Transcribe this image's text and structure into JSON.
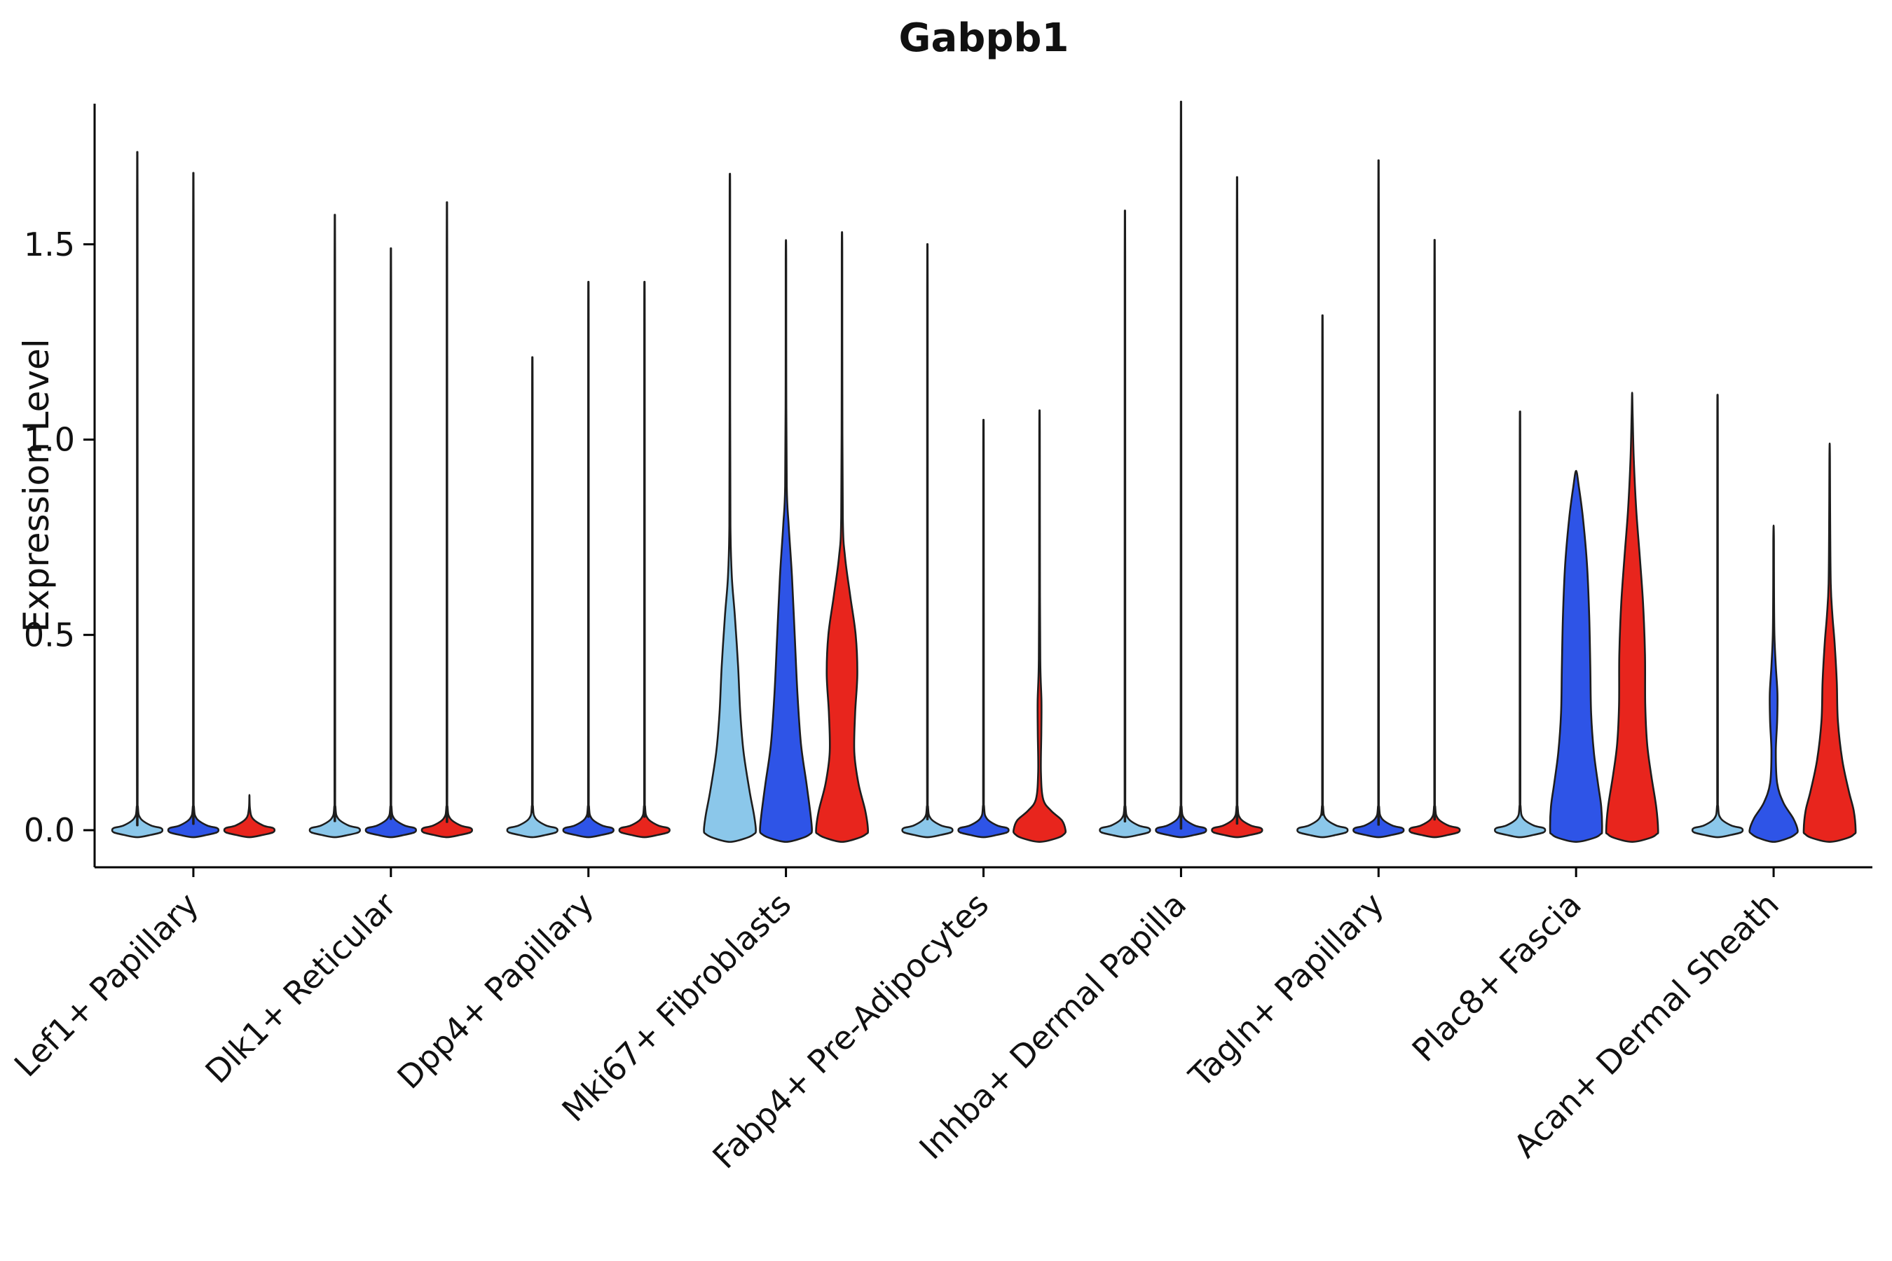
{
  "chart_data": {
    "type": "violin",
    "title": "Gabpb1",
    "ylabel": "Expression Level",
    "xlabel": "",
    "ylim": [
      -0.095,
      1.86
    ],
    "yticks": [
      0.0,
      0.5,
      1.0,
      1.5
    ],
    "ytick_labels": [
      "0.0",
      "0.5",
      "1.0",
      "1.5"
    ],
    "grid": false,
    "legend_position": "none",
    "edge_color": "#1d1d1d",
    "axis_color": "#000000",
    "background_color": "#ffffff",
    "groups": [
      {
        "name": "group-1",
        "color": "#8BC7EA"
      },
      {
        "name": "group-2",
        "color": "#2E54E7"
      },
      {
        "name": "group-3",
        "color": "#E8251D"
      }
    ],
    "categories": [
      "Lef1+ Papillary",
      "Dlk1+ Reticular",
      "Dpp4+ Papillary",
      "Mki67+ Fibroblasts",
      "Fabp4+ Pre-Adipocytes",
      "Inhba+ Dermal Papilla",
      "Tagln+ Papillary",
      "Plac8+ Fascia",
      "Acan+ Dermal Sheath"
    ],
    "violins": [
      {
        "category_index": 0,
        "group": 0,
        "max": 1.66,
        "shape": "flat"
      },
      {
        "category_index": 0,
        "group": 1,
        "max": 1.61,
        "shape": "flat"
      },
      {
        "category_index": 0,
        "group": 2,
        "max": 0.08,
        "shape": "flat"
      },
      {
        "category_index": 1,
        "group": 0,
        "max": 1.51,
        "shape": "flat"
      },
      {
        "category_index": 1,
        "group": 1,
        "max": 1.43,
        "shape": "flat"
      },
      {
        "category_index": 1,
        "group": 2,
        "max": 1.54,
        "shape": "flat"
      },
      {
        "category_index": 2,
        "group": 0,
        "max": 1.17,
        "shape": "flat"
      },
      {
        "category_index": 2,
        "group": 1,
        "max": 1.35,
        "shape": "flat"
      },
      {
        "category_index": 2,
        "group": 2,
        "max": 1.35,
        "shape": "flat"
      },
      {
        "category_index": 3,
        "group": 0,
        "max": 1.67,
        "shape": "body",
        "profile": [
          [
            -0.03,
            0
          ],
          [
            -0.02,
            0.6
          ],
          [
            -0.01,
            0.88
          ],
          [
            0,
            0.95
          ],
          [
            0.04,
            0.88
          ],
          [
            0.1,
            0.72
          ],
          [
            0.2,
            0.5
          ],
          [
            0.3,
            0.38
          ],
          [
            0.42,
            0.3
          ],
          [
            0.55,
            0.18
          ],
          [
            0.65,
            0.07
          ],
          [
            0.78,
            0.02
          ],
          [
            1.1,
            0.01
          ],
          [
            1.62,
            0.01
          ],
          [
            1.67,
            0
          ]
        ]
      },
      {
        "category_index": 3,
        "group": 1,
        "max": 1.51,
        "shape": "body",
        "profile": [
          [
            -0.03,
            0
          ],
          [
            -0.02,
            0.6
          ],
          [
            -0.01,
            0.88
          ],
          [
            0,
            0.95
          ],
          [
            0.04,
            0.9
          ],
          [
            0.12,
            0.75
          ],
          [
            0.22,
            0.55
          ],
          [
            0.35,
            0.42
          ],
          [
            0.5,
            0.32
          ],
          [
            0.65,
            0.22
          ],
          [
            0.78,
            0.1
          ],
          [
            0.88,
            0.03
          ],
          [
            1.15,
            0.012
          ],
          [
            1.46,
            0.01
          ],
          [
            1.51,
            0
          ]
        ]
      },
      {
        "category_index": 3,
        "group": 2,
        "max": 1.53,
        "shape": "body",
        "profile": [
          [
            -0.03,
            0
          ],
          [
            -0.02,
            0.6
          ],
          [
            -0.01,
            0.88
          ],
          [
            0,
            0.95
          ],
          [
            0.05,
            0.85
          ],
          [
            0.12,
            0.6
          ],
          [
            0.2,
            0.45
          ],
          [
            0.3,
            0.48
          ],
          [
            0.4,
            0.56
          ],
          [
            0.5,
            0.5
          ],
          [
            0.6,
            0.3
          ],
          [
            0.7,
            0.11
          ],
          [
            0.8,
            0.03
          ],
          [
            1.15,
            0.012
          ],
          [
            1.48,
            0.01
          ],
          [
            1.53,
            0
          ]
        ]
      },
      {
        "category_index": 4,
        "group": 0,
        "max": 1.44,
        "shape": "flat"
      },
      {
        "category_index": 4,
        "group": 1,
        "max": 1.02,
        "shape": "flat"
      },
      {
        "category_index": 4,
        "group": 2,
        "max": 1.07,
        "shape": "body",
        "profile": [
          [
            -0.03,
            0
          ],
          [
            -0.02,
            0.65
          ],
          [
            -0.01,
            0.9
          ],
          [
            0,
            0.95
          ],
          [
            0.025,
            0.82
          ],
          [
            0.05,
            0.42
          ],
          [
            0.08,
            0.13
          ],
          [
            0.15,
            0.05
          ],
          [
            0.25,
            0.065
          ],
          [
            0.33,
            0.07
          ],
          [
            0.42,
            0.03
          ],
          [
            0.6,
            0.015
          ],
          [
            1.02,
            0.01
          ],
          [
            1.07,
            0
          ]
        ]
      },
      {
        "category_index": 5,
        "group": 0,
        "max": 1.52,
        "shape": "flat"
      },
      {
        "category_index": 5,
        "group": 1,
        "max": 1.78,
        "shape": "flat"
      },
      {
        "category_index": 5,
        "group": 2,
        "max": 1.6,
        "shape": "flat"
      },
      {
        "category_index": 6,
        "group": 0,
        "max": 1.27,
        "shape": "flat"
      },
      {
        "category_index": 6,
        "group": 1,
        "max": 1.64,
        "shape": "flat"
      },
      {
        "category_index": 6,
        "group": 2,
        "max": 1.45,
        "shape": "flat"
      },
      {
        "category_index": 7,
        "group": 0,
        "max": 1.04,
        "shape": "flat"
      },
      {
        "category_index": 7,
        "group": 1,
        "max": 0.92,
        "shape": "body",
        "profile": [
          [
            -0.03,
            0
          ],
          [
            -0.02,
            0.65
          ],
          [
            -0.01,
            0.9
          ],
          [
            0,
            0.95
          ],
          [
            0.06,
            0.92
          ],
          [
            0.12,
            0.8
          ],
          [
            0.2,
            0.65
          ],
          [
            0.3,
            0.55
          ],
          [
            0.42,
            0.52
          ],
          [
            0.55,
            0.48
          ],
          [
            0.68,
            0.4
          ],
          [
            0.8,
            0.25
          ],
          [
            0.88,
            0.1
          ],
          [
            0.92,
            0
          ]
        ]
      },
      {
        "category_index": 7,
        "group": 2,
        "max": 1.12,
        "shape": "body",
        "profile": [
          [
            -0.03,
            0
          ],
          [
            -0.02,
            0.65
          ],
          [
            -0.01,
            0.9
          ],
          [
            0,
            0.95
          ],
          [
            0.06,
            0.88
          ],
          [
            0.14,
            0.7
          ],
          [
            0.22,
            0.55
          ],
          [
            0.32,
            0.48
          ],
          [
            0.45,
            0.47
          ],
          [
            0.58,
            0.4
          ],
          [
            0.7,
            0.28
          ],
          [
            0.82,
            0.15
          ],
          [
            0.95,
            0.06
          ],
          [
            1.06,
            0.02
          ],
          [
            1.12,
            0
          ]
        ]
      },
      {
        "category_index": 8,
        "group": 0,
        "max": 1.08,
        "shape": "flat"
      },
      {
        "category_index": 8,
        "group": 1,
        "max": 0.78,
        "shape": "body",
        "profile": [
          [
            -0.03,
            0
          ],
          [
            -0.02,
            0.55
          ],
          [
            -0.01,
            0.8
          ],
          [
            0,
            0.88
          ],
          [
            0.03,
            0.72
          ],
          [
            0.07,
            0.36
          ],
          [
            0.12,
            0.13
          ],
          [
            0.2,
            0.08
          ],
          [
            0.28,
            0.13
          ],
          [
            0.35,
            0.14
          ],
          [
            0.42,
            0.08
          ],
          [
            0.5,
            0.03
          ],
          [
            0.62,
            0.015
          ],
          [
            0.74,
            0.012
          ],
          [
            0.78,
            0
          ]
        ]
      },
      {
        "category_index": 8,
        "group": 2,
        "max": 0.99,
        "shape": "body",
        "profile": [
          [
            -0.03,
            0
          ],
          [
            -0.02,
            0.65
          ],
          [
            -0.01,
            0.9
          ],
          [
            0,
            0.95
          ],
          [
            0.05,
            0.88
          ],
          [
            0.1,
            0.7
          ],
          [
            0.18,
            0.46
          ],
          [
            0.28,
            0.3
          ],
          [
            0.38,
            0.26
          ],
          [
            0.48,
            0.18
          ],
          [
            0.55,
            0.1
          ],
          [
            0.63,
            0.04
          ],
          [
            0.8,
            0.018
          ],
          [
            0.95,
            0.01
          ],
          [
            0.99,
            0
          ]
        ]
      }
    ]
  }
}
